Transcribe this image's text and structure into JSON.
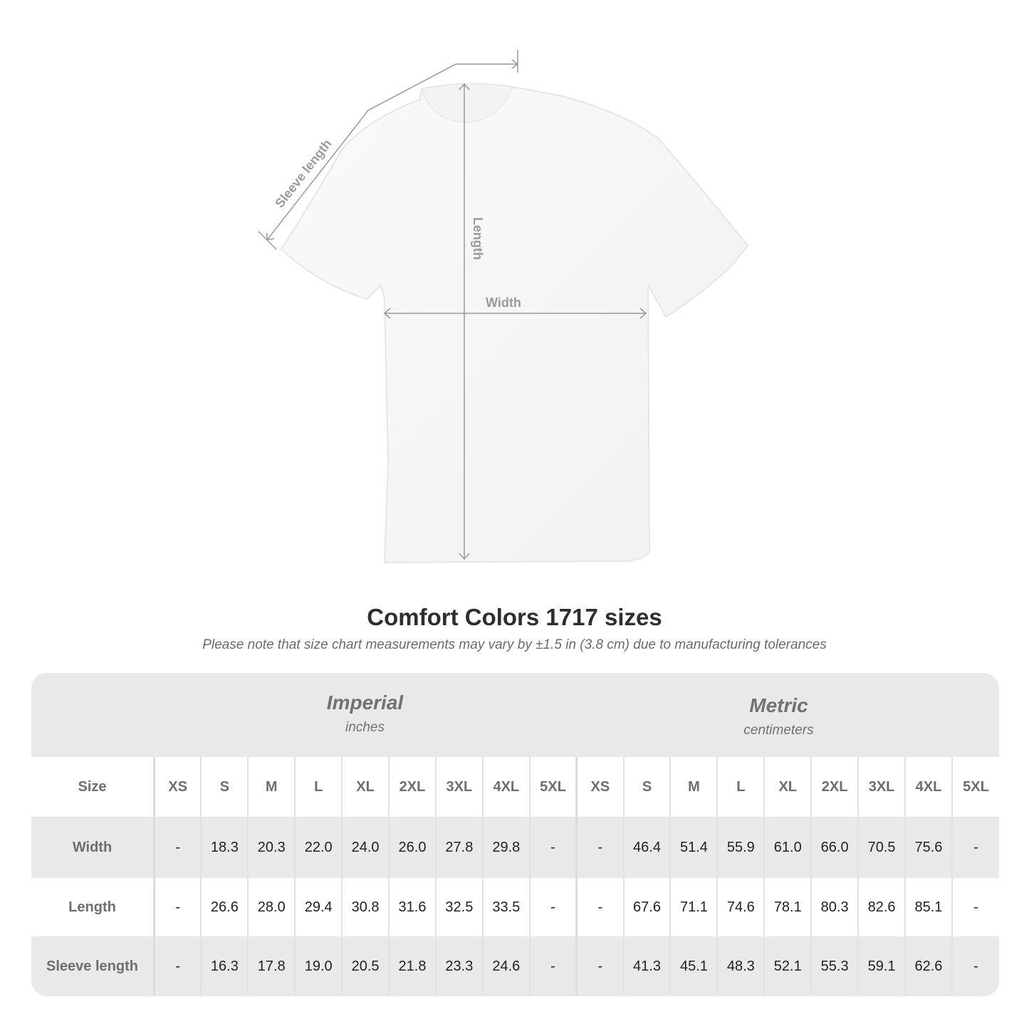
{
  "diagram": {
    "sleeve_label": "Sleeve length",
    "length_label": "Length",
    "width_label": "Width"
  },
  "title": "Comfort Colors 1717 sizes",
  "note": "Please note that size chart measurements may vary by ±1.5 in (3.8 cm) due to manufacturing tolerances",
  "imperial": {
    "name": "Imperial",
    "unit": "inches"
  },
  "metric": {
    "name": "Metric",
    "unit": "centimeters"
  },
  "table": {
    "size_label": "Size",
    "sizes": [
      "XS",
      "S",
      "M",
      "L",
      "XL",
      "2XL",
      "3XL",
      "4XL",
      "5XL"
    ],
    "rows": [
      {
        "label": "Width",
        "imperial": [
          "-",
          "18.3",
          "20.3",
          "22.0",
          "24.0",
          "26.0",
          "27.8",
          "29.8",
          "-"
        ],
        "metric": [
          "-",
          "46.4",
          "51.4",
          "55.9",
          "61.0",
          "66.0",
          "70.5",
          "75.6",
          "-"
        ]
      },
      {
        "label": "Length",
        "imperial": [
          "-",
          "26.6",
          "28.0",
          "29.4",
          "30.8",
          "31.6",
          "32.5",
          "33.5",
          "-"
        ],
        "metric": [
          "-",
          "67.6",
          "71.1",
          "74.6",
          "78.1",
          "80.3",
          "82.6",
          "85.1",
          "-"
        ]
      },
      {
        "label": "Sleeve length",
        "imperial": [
          "-",
          "16.3",
          "17.8",
          "19.0",
          "20.5",
          "21.8",
          "23.3",
          "24.6",
          "-"
        ],
        "metric": [
          "-",
          "41.3",
          "45.1",
          "48.3",
          "52.1",
          "55.3",
          "59.1",
          "62.6",
          "-"
        ]
      }
    ]
  }
}
